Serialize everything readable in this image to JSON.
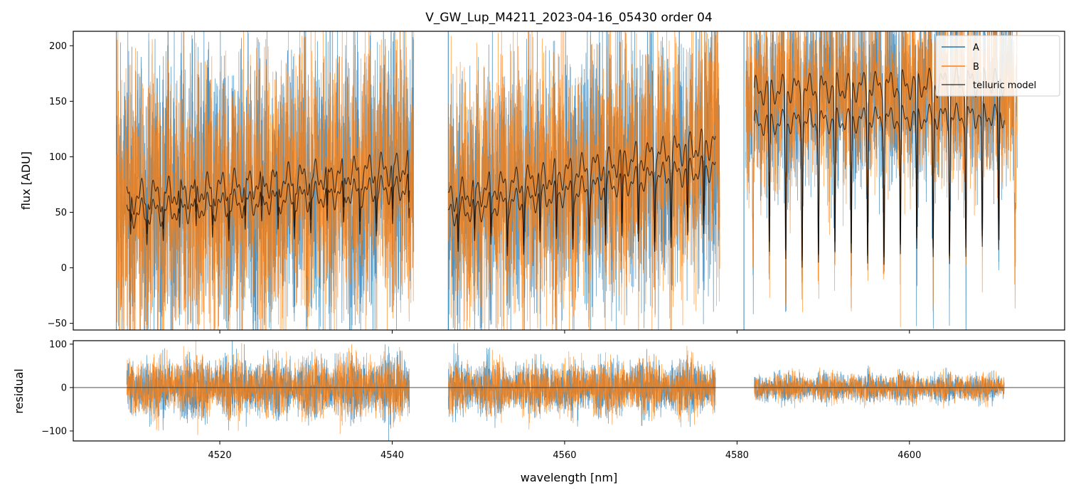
{
  "chart_data": {
    "type": "line",
    "title": "V_GW_Lup_M4211_2023-04-16_05430  order 04",
    "xlabel": "wavelength [nm]",
    "colors": {
      "A": "#1f77b4",
      "B": "#ff7f0e",
      "telluric": "#000000",
      "zero_line": "#333333"
    },
    "legend": {
      "position": "top-right",
      "entries": [
        "A",
        "B",
        "telluric model"
      ]
    },
    "flux_panel": {
      "ylabel": "flux [ADU]",
      "xlim": [
        4503,
        4618
      ],
      "ylim": [
        -56,
        213
      ],
      "xticks": [
        4520,
        4540,
        4560,
        4580,
        4600
      ],
      "yticks": [
        -50,
        0,
        50,
        100,
        150,
        200
      ],
      "segments": [
        {
          "x_start": 4508.0,
          "x_end": 4542.5,
          "telluric_base": 58,
          "telluric_trend": 30,
          "noise_amp": 120,
          "blend": 0.35
        },
        {
          "x_start": 4546.5,
          "x_end": 4578.0,
          "telluric_base": 60,
          "telluric_trend": 50,
          "noise_amp": 110,
          "blend": 0.6
        },
        {
          "x_start": 4581.0,
          "x_end": 4612.5,
          "telluric_base": 155,
          "telluric_trend": 10,
          "noise_amp": 80,
          "blend": 1.0
        }
      ],
      "telluric_model": [
        {
          "x_start": 4509.2,
          "x_end": 4542.0
        },
        {
          "x_start": 4546.5,
          "x_end": 4577.5
        },
        {
          "x_start": 4582.0,
          "x_end": 4611.0
        }
      ]
    },
    "residual_panel": {
      "ylabel": "residual",
      "xlim": [
        4503,
        4618
      ],
      "ylim": [
        -123,
        108
      ],
      "yticks": [
        -100,
        0,
        100
      ],
      "xticks": [
        4520,
        4540,
        4560,
        4580,
        4600
      ],
      "zero_line": 0,
      "segments": [
        {
          "x_start": 4509.2,
          "x_end": 4542.0,
          "amp": 75
        },
        {
          "x_start": 4546.5,
          "x_end": 4577.5,
          "amp": 65
        },
        {
          "x_start": 4582.0,
          "x_end": 4611.0,
          "amp": 35
        }
      ]
    }
  }
}
